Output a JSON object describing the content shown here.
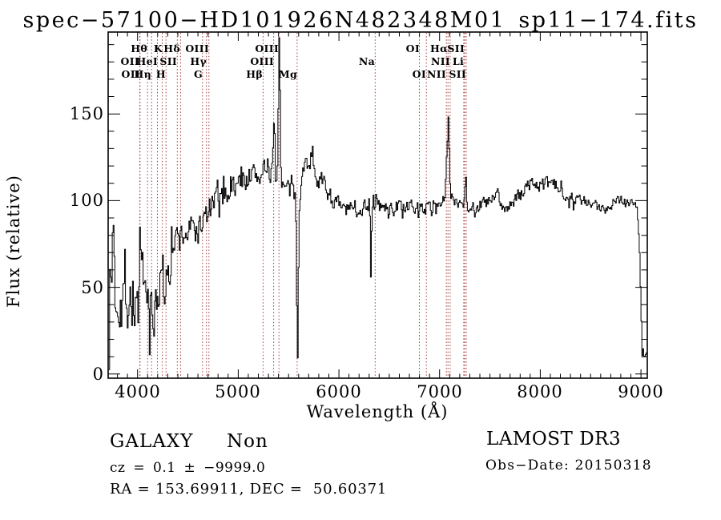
{
  "title": "spec−57100−HD101926N482348M01_sp11−174.fits",
  "footer": {
    "class_label": "GALAXY     Non",
    "cz_line": "cz = 0.1 ± −9999.0",
    "coord_line": "RA = 153.69911, DEC =  50.60371",
    "survey": "LAMOST DR3",
    "obs_date": "Obs−Date: 20150318"
  },
  "chart_data": {
    "type": "line",
    "title": "spec−57100−HD101926N482348M01_sp11−174.fits",
    "xlabel": "Wavelength (Å)",
    "ylabel": "Flux (relative)",
    "xlim": [
      3708,
      9063
    ],
    "ylim": [
      -2.4,
      197.2
    ],
    "x_ticks": [
      4000,
      5000,
      6000,
      7000,
      8000,
      9000
    ],
    "y_ticks": [
      0,
      50,
      100,
      150
    ],
    "x_minor_step": 100,
    "y_minor_step": 10,
    "grid": false,
    "legend": null,
    "line_color": "#000000",
    "marker_color": "#a33838",
    "redshift_factor": 1.0793,
    "line_markers": [
      {
        "label": "Hθ",
        "rest": 3798,
        "row": 1
      },
      {
        "label": "K",
        "rest": 3934,
        "row": 1
      },
      {
        "label": "Hδ",
        "rest": 4102,
        "row": 1
      },
      {
        "label": "OIII",
        "rest": 4363,
        "row": 1
      },
      {
        "label": "OIII",
        "rest": 5007,
        "row": 1
      },
      {
        "label": "OI",
        "rest": 6300,
        "row": 1
      },
      {
        "label": "Hα",
        "rest": 6563,
        "row": 1
      },
      {
        "label": "SII",
        "rest": 6717,
        "row": 1
      },
      {
        "label": "OII",
        "rest": 3726,
        "row": 2
      },
      {
        "label": "HeI",
        "rest": 3889,
        "row": 2
      },
      {
        "label": "SII",
        "rest": 4072,
        "row": 2
      },
      {
        "label": "Hγ",
        "rest": 4340,
        "row": 2
      },
      {
        "label": "OIII",
        "rest": 4959,
        "row": 2
      },
      {
        "label": "Na",
        "rest": 5893,
        "row": 2
      },
      {
        "label": "NII",
        "rest": 6583,
        "row": 2
      },
      {
        "label": "Li",
        "rest": 6708,
        "row": 2
      },
      {
        "label": "OII",
        "rest": 3729,
        "row": 3
      },
      {
        "label": "Hη",
        "rest": 3835,
        "row": 3
      },
      {
        "label": "H",
        "rest": 3968,
        "row": 3
      },
      {
        "label": "G",
        "rest": 4304,
        "row": 3
      },
      {
        "label": "Hβ",
        "rest": 4861,
        "row": 3
      },
      {
        "label": "Mg",
        "rest": 5175,
        "row": 3
      },
      {
        "label": "OI",
        "rest": 6364,
        "row": 3
      },
      {
        "label": "NII",
        "rest": 6548,
        "row": 3
      },
      {
        "label": "SII",
        "rest": 6731,
        "row": 3
      }
    ],
    "spectrum": {
      "noise_seed": 7,
      "continuum": [
        [
          3708,
          48
        ],
        [
          3730,
          52
        ],
        [
          3760,
          50
        ],
        [
          3800,
          48
        ],
        [
          3840,
          46
        ],
        [
          3880,
          45
        ],
        [
          3920,
          44
        ],
        [
          3960,
          42
        ],
        [
          4000,
          41
        ],
        [
          4040,
          44
        ],
        [
          4080,
          42
        ],
        [
          4120,
          41
        ],
        [
          4160,
          42
        ],
        [
          4200,
          48
        ],
        [
          4250,
          58
        ],
        [
          4300,
          66
        ],
        [
          4350,
          73
        ],
        [
          4400,
          78
        ],
        [
          4450,
          80
        ],
        [
          4500,
          82
        ],
        [
          4550,
          84
        ],
        [
          4600,
          83
        ],
        [
          4650,
          88
        ],
        [
          4700,
          93
        ],
        [
          4750,
          98
        ],
        [
          4800,
          101
        ],
        [
          4850,
          103
        ],
        [
          4900,
          106
        ],
        [
          4950,
          108
        ],
        [
          5000,
          110
        ],
        [
          5050,
          112
        ],
        [
          5100,
          114
        ],
        [
          5150,
          115
        ],
        [
          5200,
          113
        ],
        [
          5260,
          112
        ],
        [
          5320,
          114
        ],
        [
          5380,
          110
        ],
        [
          5430,
          108
        ],
        [
          5500,
          106
        ],
        [
          5550,
          103
        ],
        [
          5600,
          106
        ],
        [
          5650,
          118
        ],
        [
          5700,
          126
        ],
        [
          5740,
          122
        ],
        [
          5780,
          115
        ],
        [
          5830,
          110
        ],
        [
          5880,
          106
        ],
        [
          5930,
          101
        ],
        [
          5980,
          98
        ],
        [
          6040,
          95
        ],
        [
          6100,
          95
        ],
        [
          6160,
          94
        ],
        [
          6220,
          96
        ],
        [
          6280,
          98
        ],
        [
          6340,
          97
        ],
        [
          6400,
          97
        ],
        [
          6460,
          95
        ],
        [
          6520,
          96
        ],
        [
          6580,
          97
        ],
        [
          6640,
          96
        ],
        [
          6700,
          95
        ],
        [
          6760,
          96
        ],
        [
          6820,
          96
        ],
        [
          6880,
          96
        ],
        [
          6940,
          97
        ],
        [
          7000,
          99
        ],
        [
          7060,
          101
        ],
        [
          7120,
          101
        ],
        [
          7180,
          100
        ],
        [
          7240,
          99
        ],
        [
          7300,
          96
        ],
        [
          7360,
          96
        ],
        [
          7420,
          98
        ],
        [
          7480,
          99
        ],
        [
          7540,
          101
        ],
        [
          7580,
          105
        ],
        [
          7605,
          95
        ],
        [
          7650,
          96
        ],
        [
          7700,
          97
        ],
        [
          7750,
          100
        ],
        [
          7800,
          104
        ],
        [
          7860,
          108
        ],
        [
          7920,
          111
        ],
        [
          7980,
          108
        ],
        [
          8040,
          109
        ],
        [
          8100,
          110
        ],
        [
          8160,
          108
        ],
        [
          8220,
          105
        ],
        [
          8280,
          103
        ],
        [
          8340,
          101
        ],
        [
          8400,
          100
        ],
        [
          8460,
          98
        ],
        [
          8520,
          97
        ],
        [
          8580,
          96
        ],
        [
          8640,
          96
        ],
        [
          8700,
          98
        ],
        [
          8760,
          101
        ],
        [
          8820,
          101
        ],
        [
          8870,
          99
        ],
        [
          8920,
          99
        ],
        [
          8955,
          97
        ],
        [
          8980,
          75
        ],
        [
          8998,
          35
        ],
        [
          9008,
          10
        ],
        [
          9018,
          16
        ],
        [
          9030,
          9
        ],
        [
          9045,
          13
        ],
        [
          9060,
          11
        ]
      ],
      "noise_amp": [
        [
          3708,
          36
        ],
        [
          3760,
          34
        ],
        [
          3820,
          30
        ],
        [
          3880,
          28
        ],
        [
          3940,
          27
        ],
        [
          4000,
          26
        ],
        [
          4060,
          24
        ],
        [
          4120,
          22
        ],
        [
          4180,
          20
        ],
        [
          4250,
          17
        ],
        [
          4330,
          14
        ],
        [
          4420,
          13
        ],
        [
          4520,
          12
        ],
        [
          4650,
          11
        ],
        [
          4800,
          10
        ],
        [
          4950,
          9
        ],
        [
          5100,
          9
        ],
        [
          5300,
          8
        ],
        [
          5500,
          8
        ],
        [
          5700,
          9
        ],
        [
          5900,
          7
        ],
        [
          6100,
          6
        ],
        [
          6350,
          6
        ],
        [
          6600,
          5
        ],
        [
          6900,
          5
        ],
        [
          7200,
          5
        ],
        [
          7500,
          5
        ],
        [
          7800,
          5
        ],
        [
          8100,
          5
        ],
        [
          8400,
          5
        ],
        [
          8700,
          4
        ],
        [
          8930,
          4
        ],
        [
          9000,
          2
        ],
        [
          9063,
          2
        ]
      ],
      "features": [
        [
          3755,
          50,
          6
        ],
        [
          4023,
          28,
          7
        ],
        [
          4152,
          -24,
          9
        ],
        [
          4265,
          -26,
          7
        ],
        [
          5247,
          10,
          14
        ],
        [
          5352,
          38,
          8
        ],
        [
          5404,
          84,
          9
        ],
        [
          5585,
          -92,
          8
        ],
        [
          6303,
          12,
          5
        ],
        [
          6312,
          -44,
          6
        ],
        [
          7065,
          12,
          7
        ],
        [
          7083,
          45,
          10
        ],
        [
          7255,
          16,
          7
        ]
      ]
    }
  }
}
